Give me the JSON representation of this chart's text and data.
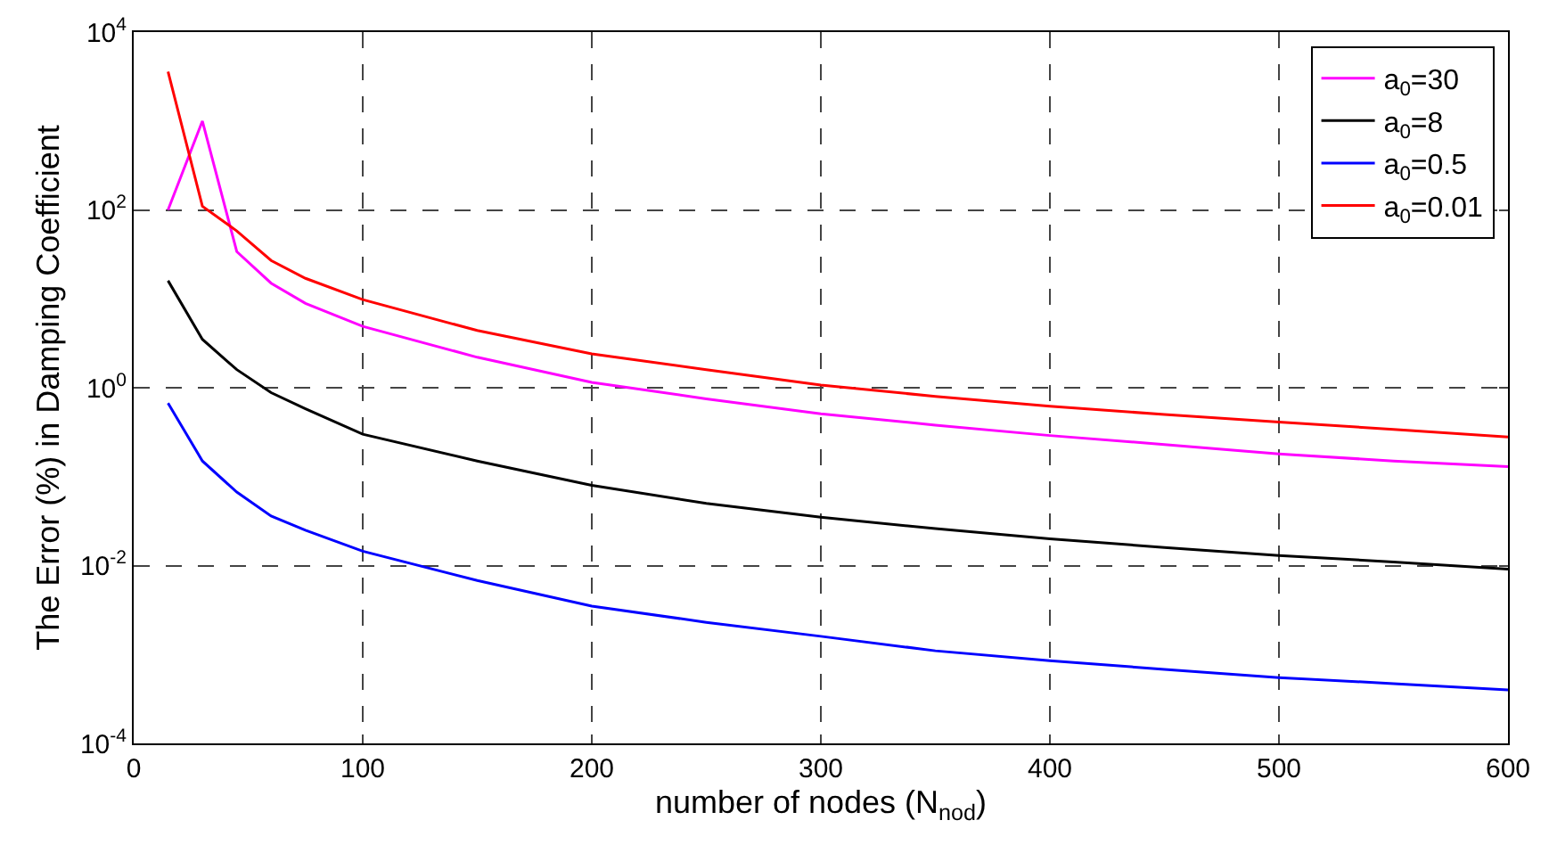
{
  "chart_data": {
    "type": "line",
    "xlabel": "number of nodes (N$_{nod}$)",
    "ylabel": "The Error (%) in Damping Coefficient",
    "log": "y",
    "grid": true,
    "legend": "top right",
    "xlim": [
      0,
      600
    ],
    "xticks": [
      0,
      100,
      200,
      300,
      400,
      500,
      600
    ],
    "ylim": [
      0.0001,
      10000
    ],
    "yticks": [
      {
        "value": 0.0001,
        "label": "10$^{-4}$"
      },
      {
        "value": 0.01,
        "label": "10$^{-2}$"
      },
      {
        "value": 1,
        "label": "10$^{0}$"
      },
      {
        "value": 100,
        "label": "10$^{2}$"
      },
      {
        "value": 10000,
        "label": "10$^{4}$"
      }
    ],
    "x": [
      15,
      30,
      45,
      60,
      75,
      100,
      150,
      200,
      250,
      300,
      350,
      400,
      450,
      500,
      550,
      600
    ],
    "series": [
      {
        "name": "a$_{0}$=30",
        "color": "#ff00ff",
        "values": [
          100,
          1000,
          34,
          15,
          8.9,
          4.9,
          2.2,
          1.15,
          0.75,
          0.51,
          0.38,
          0.29,
          0.23,
          0.18,
          0.15,
          0.13
        ]
      },
      {
        "name": "a$_{0}$=8",
        "color": "#000000",
        "values": [
          16,
          3.5,
          1.6,
          0.88,
          0.58,
          0.3,
          0.15,
          0.08,
          0.05,
          0.035,
          0.026,
          0.02,
          0.016,
          0.013,
          0.011,
          0.0091
        ]
      },
      {
        "name": "a$_{0}$=0.5",
        "color": "#0000ff",
        "values": [
          0.67,
          0.15,
          0.067,
          0.036,
          0.025,
          0.0145,
          0.0068,
          0.0035,
          0.0023,
          0.0016,
          0.0011,
          0.00085,
          0.00068,
          0.00055,
          0.00047,
          0.0004
        ]
      },
      {
        "name": "a$_{0}$=0.01",
        "color": "#ff0000",
        "values": [
          3600,
          110,
          58,
          27,
          17,
          9.8,
          4.4,
          2.4,
          1.6,
          1.07,
          0.8,
          0.62,
          0.5,
          0.41,
          0.34,
          0.28
        ]
      }
    ]
  }
}
